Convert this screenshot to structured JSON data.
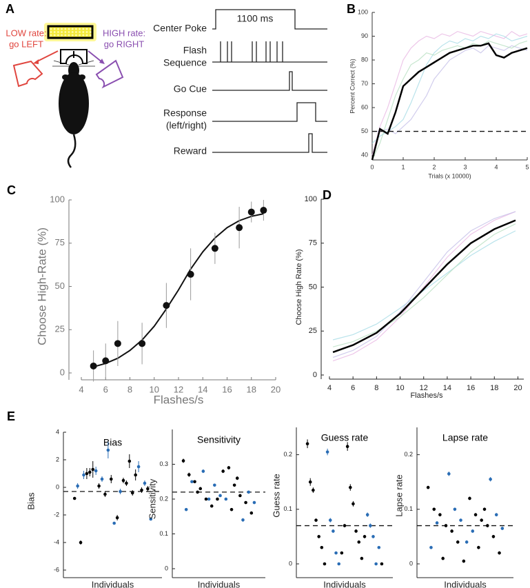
{
  "panel_a": {
    "letter": "A",
    "left_label": [
      "LOW rate:",
      "go LEFT"
    ],
    "right_label": [
      "HIGH rate:",
      "go RIGHT"
    ],
    "duration": "1100 ms",
    "rows": [
      [
        "Center Poke"
      ],
      [
        "Flash",
        "Sequence"
      ],
      [
        "Go Cue"
      ],
      [
        "Response",
        "(left/right)"
      ],
      [
        "Reward"
      ]
    ]
  },
  "chart_data": [
    {
      "type": "line",
      "panel": "B",
      "xlabel": "Trials (x 10000)",
      "ylabel": "Percent Correct (%)",
      "xlim": [
        0,
        5
      ],
      "ylim": [
        38,
        100
      ],
      "xticks": [
        0,
        1,
        2,
        3,
        4,
        5
      ],
      "yticks": [
        40,
        50,
        60,
        70,
        80,
        90,
        100
      ],
      "hline": 50,
      "x": [
        0,
        0.25,
        0.5,
        0.75,
        1,
        1.25,
        1.5,
        1.75,
        2,
        2.25,
        2.5,
        2.75,
        3,
        3.25,
        3.5,
        3.75,
        4,
        4.25,
        4.5,
        4.75,
        5
      ],
      "series": [
        {
          "color": "#000000",
          "values": [
            38,
            51,
            49,
            58,
            69,
            72,
            75,
            77,
            79,
            81,
            83,
            84,
            85,
            86,
            86,
            87,
            82,
            81,
            83,
            84,
            85
          ]
        },
        {
          "color": "#e8b8e4",
          "values": [
            40,
            52,
            60,
            70,
            80,
            85,
            88,
            90,
            89,
            91,
            90,
            92,
            91,
            90,
            92,
            91,
            90,
            89,
            92,
            90,
            91
          ]
        },
        {
          "color": "#a8dce6",
          "values": [
            45,
            48,
            50,
            52,
            55,
            62,
            70,
            78,
            83,
            86,
            88,
            87,
            89,
            88,
            90,
            89,
            91,
            90,
            88,
            89,
            90
          ]
        },
        {
          "color": "#c6c0e8",
          "values": [
            50,
            50,
            51,
            49,
            52,
            55,
            60,
            65,
            72,
            76,
            80,
            82,
            84,
            85,
            83,
            86,
            85,
            84,
            86,
            85,
            84
          ]
        },
        {
          "color": "#b8e0c2",
          "values": [
            38,
            45,
            55,
            65,
            72,
            78,
            80,
            83,
            82,
            84,
            85,
            86,
            85,
            87,
            86,
            88,
            87,
            86,
            85,
            87,
            88
          ]
        }
      ]
    },
    {
      "type": "scatter",
      "panel": "C",
      "xlabel": "Flashes/s",
      "ylabel": "Choose High-Rate (%)",
      "xlim": [
        4,
        20
      ],
      "ylim": [
        0,
        100
      ],
      "xticks": [
        4,
        6,
        8,
        10,
        12,
        14,
        16,
        18,
        20
      ],
      "yticks": [
        0,
        25,
        50,
        75,
        100
      ],
      "x": [
        5,
        6,
        7,
        9,
        11,
        13,
        15,
        17,
        18,
        19
      ],
      "values": [
        4,
        7,
        17,
        17,
        39,
        57,
        72,
        84,
        93,
        94
      ],
      "errors": [
        9,
        10,
        13,
        12,
        13,
        15,
        9,
        12,
        6,
        6
      ],
      "color": "#111111",
      "fit": {
        "x": [
          5,
          6,
          7,
          8,
          9,
          10,
          11,
          12,
          13,
          14,
          15,
          16,
          17,
          18,
          19
        ],
        "values": [
          3.5,
          5.5,
          8.5,
          13,
          19,
          27,
          37,
          48,
          60,
          70,
          78,
          84,
          88,
          90.5,
          92
        ]
      }
    },
    {
      "type": "line",
      "panel": "D",
      "xlabel": "Flashes/s",
      "ylabel": "Choose High Rate (%)",
      "xlim": [
        4,
        20.5
      ],
      "ylim": [
        0,
        100
      ],
      "xticks": [
        4,
        6,
        8,
        10,
        12,
        14,
        16,
        18,
        20
      ],
      "yticks": [
        0,
        25,
        50,
        75,
        100
      ],
      "x": [
        4.3,
        6,
        8,
        10,
        12,
        14,
        16,
        18,
        19.8
      ],
      "series": [
        {
          "color": "#000000",
          "values": [
            13,
            17,
            24,
            35,
            49,
            63,
            75,
            83,
            88
          ]
        },
        {
          "color": "#e8b8e4",
          "values": [
            8,
            12,
            20,
            33,
            50,
            67,
            80,
            88,
            93
          ]
        },
        {
          "color": "#a8dce6",
          "values": [
            20,
            23,
            29,
            38,
            48,
            58,
            68,
            76,
            82
          ]
        },
        {
          "color": "#c6c0e8",
          "values": [
            10,
            14,
            22,
            36,
            53,
            70,
            82,
            89,
            93
          ]
        },
        {
          "color": "#b8e0c2",
          "values": [
            16,
            19,
            25,
            33,
            44,
            57,
            70,
            80,
            86
          ]
        }
      ]
    },
    {
      "type": "strip",
      "panel": "E",
      "title": "Bias",
      "ylabel": "Bias",
      "xlabel": "Individuals",
      "ylim": [
        -6,
        4
      ],
      "yticks": [
        -6,
        -4,
        -2,
        0,
        2,
        4
      ],
      "hline": -0.3,
      "values": [
        -0.8,
        1.2,
        -2.2,
        1.5,
        -4.0,
        0.6,
        0.5,
        0.3,
        1.0,
        2.7,
        1.9,
        -2.3,
        1.3,
        -2.6,
        0.9,
        0.1,
        0.1,
        -0.3,
        -0.2,
        0.9,
        -0.5,
        0.3,
        -0.1,
        1.1,
        0.6,
        -0.4
      ],
      "errors": [
        0.1,
        0.3,
        0.2,
        0.4,
        0.15,
        0.2,
        0.2,
        0.2,
        0.4,
        0.6,
        0.5,
        0.1,
        0.6,
        0.1,
        0.4,
        0.2,
        0.2,
        0.2,
        0.2,
        0.3,
        0.2,
        0.2,
        0.2,
        0.3,
        0.3,
        0.2
      ],
      "colors": [
        "#000",
        "#2a6db5",
        "#000",
        "#2a6db5",
        "#000",
        "#2a6db5",
        "#000",
        "#2a6db5",
        "#000",
        "#2a6db5",
        "#000",
        "#2a6db5",
        "#000",
        "#2a6db5",
        "#000",
        "#2a6db5",
        "#000",
        "#2a6db5",
        "#000",
        "#2a6db5",
        "#000",
        "#000",
        "#000",
        "#000",
        "#000",
        "#000"
      ]
    },
    {
      "type": "strip",
      "title": "Sensitivity",
      "ylabel": "Sensitivity",
      "xlabel": "Individuals",
      "ylim": [
        0,
        0.4
      ],
      "yticks": [
        0,
        0.1,
        0.2,
        0.3
      ],
      "hline": 0.22,
      "values": [
        0.31,
        0.28,
        0.28,
        0.14,
        0.27,
        0.2,
        0.29,
        0.22,
        0.25,
        0.24,
        0.24,
        0.19,
        0.23,
        0.21,
        0.21,
        0.17,
        0.2,
        0.2,
        0.19,
        0.25,
        0.18,
        0.17,
        0.16,
        0.22,
        0.2,
        0.26
      ],
      "errors": [
        0.006,
        0.005,
        0.005,
        0.005,
        0.006,
        0.004,
        0.005,
        0.004,
        0.004,
        0.004,
        0.004,
        0.004,
        0.004,
        0.004,
        0.004,
        0.004,
        0.004,
        0.004,
        0.004,
        0.004,
        0.004,
        0.004,
        0.004,
        0.004,
        0.004,
        0.005
      ],
      "colors": [
        "#000",
        "#2a6db5",
        "#000",
        "#2a6db5",
        "#000",
        "#2a6db5",
        "#000",
        "#2a6db5",
        "#000",
        "#2a6db5",
        "#000",
        "#2a6db5",
        "#000",
        "#2a6db5",
        "#000",
        "#2a6db5",
        "#000",
        "#2a6db5",
        "#000",
        "#2a6db5",
        "#000",
        "#000",
        "#000",
        "#000",
        "#000",
        "#000"
      ]
    },
    {
      "type": "strip",
      "title": "Guess rate",
      "ylabel": "Guess rate",
      "xlabel": "Individuals",
      "ylim": [
        0,
        0.25
      ],
      "yticks": [
        0,
        0.1,
        0.2
      ],
      "hline": 0.07,
      "values": [
        0.22,
        0.205,
        0.215,
        0.09,
        0.15,
        0.08,
        0.14,
        0.07,
        0.135,
        0.06,
        0.11,
        0.05,
        0.08,
        0.02,
        0.06,
        0,
        0.05,
        0,
        0.04,
        0.03,
        0.03,
        0.02,
        0.01,
        0,
        0,
        0.07,
        0.05
      ],
      "errors": [
        0.008,
        0.006,
        0.008,
        0.004,
        0.007,
        0.004,
        0.006,
        0.004,
        0.005,
        0.003,
        0.005,
        0.003,
        0.003,
        0.002,
        0.003,
        0.002,
        0.003,
        0.002,
        0.002,
        0.002,
        0.002,
        0.002,
        0.002,
        0.002,
        0.002,
        0.003,
        0.003
      ],
      "colors": [
        "#000",
        "#2a6db5",
        "#000",
        "#2a6db5",
        "#000",
        "#2a6db5",
        "#000",
        "#2a6db5",
        "#000",
        "#2a6db5",
        "#000",
        "#2a6db5",
        "#000",
        "#2a6db5",
        "#000",
        "#2a6db5",
        "#000",
        "#2a6db5",
        "#000",
        "#2a6db5",
        "#000",
        "#000",
        "#000",
        "#000",
        "#000",
        "#000",
        "#000"
      ]
    },
    {
      "type": "strip",
      "title": "Lapse rate",
      "ylabel": "Lapse rate",
      "xlabel": "Individuals",
      "ylim": [
        0,
        0.25
      ],
      "yticks": [
        0,
        0.1,
        0.2
      ],
      "hline": 0.07,
      "values": [
        0.14,
        0.165,
        0.12,
        0.155,
        0.1,
        0.1,
        0.09,
        0.09,
        0.09,
        0.08,
        0.08,
        0.065,
        0.07,
        0.04,
        0.07,
        0.03,
        0.06,
        0.06,
        0.05,
        0.075,
        0.04,
        0.03,
        0.02,
        0.01,
        0.005,
        0.1
      ],
      "errors": [
        0.003,
        0.004,
        0.003,
        0.004,
        0.003,
        0.003,
        0.003,
        0.003,
        0.003,
        0.003,
        0.003,
        0.003,
        0.003,
        0.003,
        0.003,
        0.003,
        0.003,
        0.003,
        0.003,
        0.003,
        0.003,
        0.003,
        0.003,
        0.003,
        0.003,
        0.003
      ],
      "colors": [
        "#000",
        "#2a6db5",
        "#000",
        "#2a6db5",
        "#000",
        "#2a6db5",
        "#000",
        "#2a6db5",
        "#000",
        "#2a6db5",
        "#000",
        "#2a6db5",
        "#000",
        "#2a6db5",
        "#000",
        "#2a6db5",
        "#000",
        "#2a6db5",
        "#000",
        "#2a6db5",
        "#000",
        "#000",
        "#000",
        "#000",
        "#000",
        "#000"
      ]
    }
  ]
}
